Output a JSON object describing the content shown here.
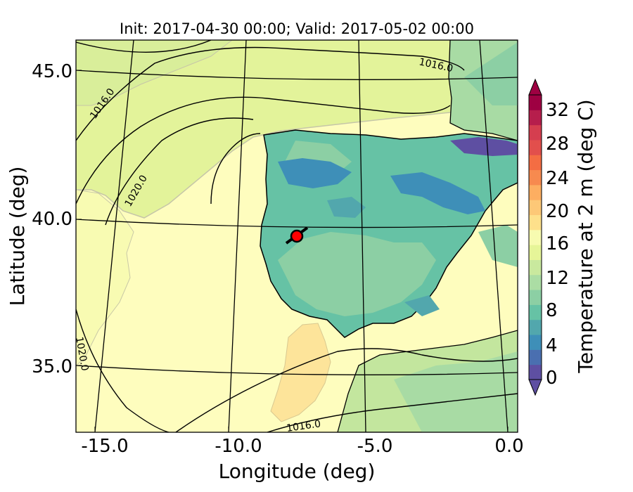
{
  "figure": {
    "title": "Init: 2017-04-30 00:00; Valid: 2017-05-02 00:00",
    "xlabel": "Longitude (deg)",
    "ylabel": "Latitude (deg)"
  },
  "axes": {
    "x_ticks": [
      "-15.0",
      "-10.0",
      "-5.0",
      "0.0"
    ],
    "y_ticks": [
      "45.0",
      "40.0",
      "35.0"
    ]
  },
  "isobars": {
    "labels": [
      "1016.0",
      "1016.0",
      "1020.0",
      "1020.0",
      "1016.0"
    ]
  },
  "colorbar": {
    "label": "Temperature at 2 m (deg C)",
    "ticks": [
      "0",
      "4",
      "8",
      "12",
      "16",
      "20",
      "24",
      "28",
      "32"
    ],
    "colors": [
      "#5e4fa2",
      "#4a6fb0",
      "#3e8fb8",
      "#52a7ad",
      "#66c2a5",
      "#8ccfa4",
      "#abdda4",
      "#c9e99e",
      "#e6f598",
      "#f7fbb0",
      "#fee08b",
      "#fdc877",
      "#fdae61",
      "#f78a4f",
      "#f46d43",
      "#e24f4c",
      "#d53e4f",
      "#b61e4c",
      "#9e0142"
    ]
  },
  "marker": {
    "name": "Red marker",
    "color": "#ff0000"
  }
}
